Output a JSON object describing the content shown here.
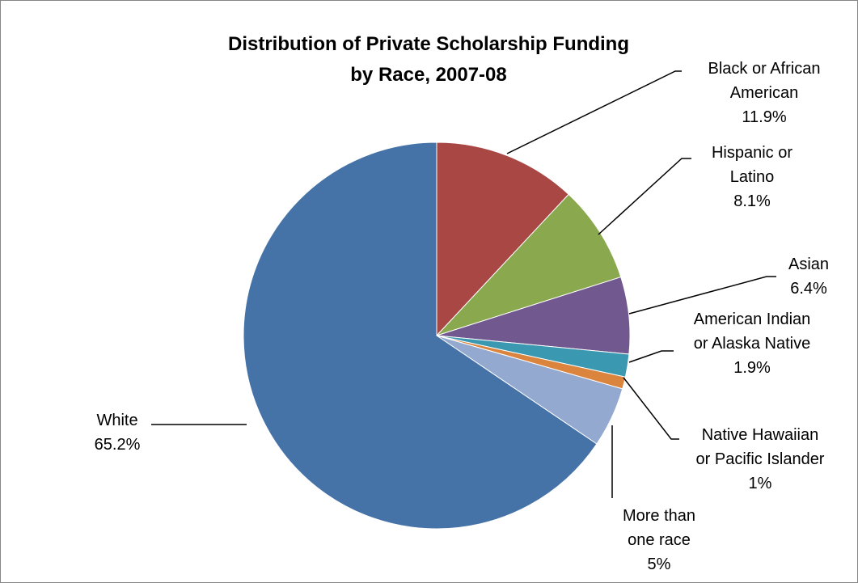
{
  "chart": {
    "title_line1": "Distribution of Private Scholarship Funding",
    "title_line2": "by Race, 2007-08"
  },
  "chart_data": {
    "type": "pie",
    "title": "Distribution of Private Scholarship Funding by Race, 2007-08",
    "start": "12 o'clock, clockwise",
    "slices": [
      {
        "label": "Black or African American",
        "value": 11.9,
        "display": "11.9%",
        "color": "#A84744"
      },
      {
        "label": "Hispanic or Latino",
        "value": 8.1,
        "display": "8.1%",
        "color": "#8AA84E"
      },
      {
        "label": "Asian",
        "value": 6.4,
        "display": "6.4%",
        "color": "#71588F"
      },
      {
        "label": "American Indian or Alaska Native",
        "value": 1.9,
        "display": "1.9%",
        "color": "#3A98B0"
      },
      {
        "label": "Native Hawaiian or Pacific Islander",
        "value": 1.0,
        "display": "1%",
        "color": "#DB843D"
      },
      {
        "label": "More than one race",
        "value": 5.0,
        "display": "5%",
        "color": "#93A9D0"
      },
      {
        "label": "White",
        "value": 65.2,
        "display": "65.2%",
        "color": "#4572A7"
      }
    ]
  },
  "labels": {
    "black": {
      "line1": "Black or African",
      "line2": "American",
      "pct": "11.9%"
    },
    "hispanic": {
      "line1": "Hispanic or",
      "line2": "Latino",
      "pct": "8.1%"
    },
    "asian": {
      "line1": "Asian",
      "pct": "6.4%"
    },
    "amindian": {
      "line1": "American Indian",
      "line2": "or Alaska Native",
      "pct": "1.9%"
    },
    "hawaiian": {
      "line1": "Native Hawaiian",
      "line2": "or Pacific Islander",
      "pct": "1%"
    },
    "multi": {
      "line1": "More than",
      "line2": "one race",
      "pct": "5%"
    },
    "white": {
      "line1": "White",
      "pct": "65.2%"
    }
  }
}
